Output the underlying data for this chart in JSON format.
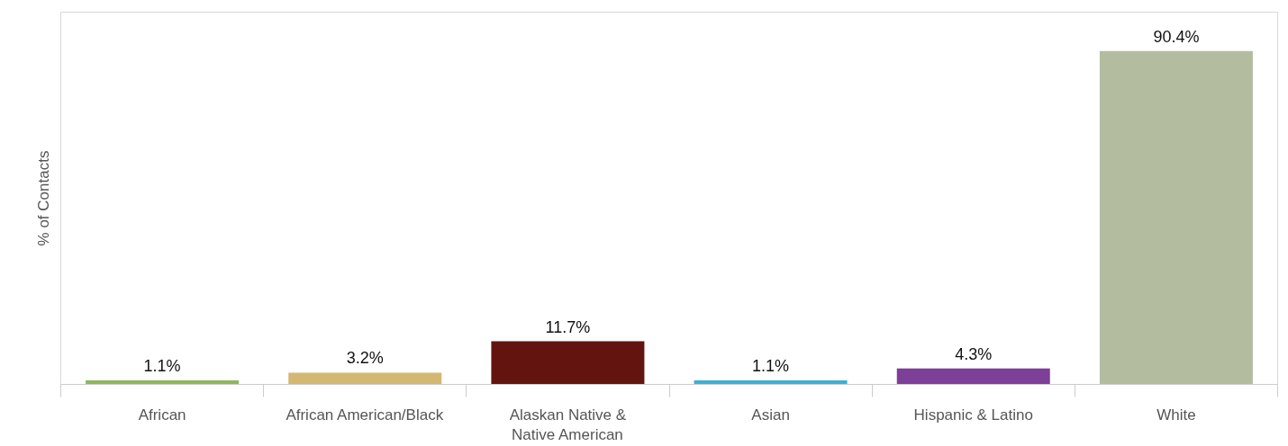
{
  "chart_data": {
    "type": "bar",
    "ylabel": "% of Contacts",
    "categories": [
      "African",
      "African American/Black",
      "Alaskan Native & Native American",
      "Asian",
      "Hispanic & Latino",
      "White"
    ],
    "values": [
      1.1,
      3.2,
      11.7,
      1.1,
      4.3,
      90.4
    ],
    "colors": [
      "#8db85a",
      "#d4b872",
      "#64140e",
      "#3bb0d8",
      "#7e3f98",
      "#b4bca0"
    ],
    "value_labels": [
      "1.1%",
      "3.2%",
      "11.7%",
      "1.1%",
      "4.3%",
      "90.4%"
    ],
    "grid": false
  }
}
